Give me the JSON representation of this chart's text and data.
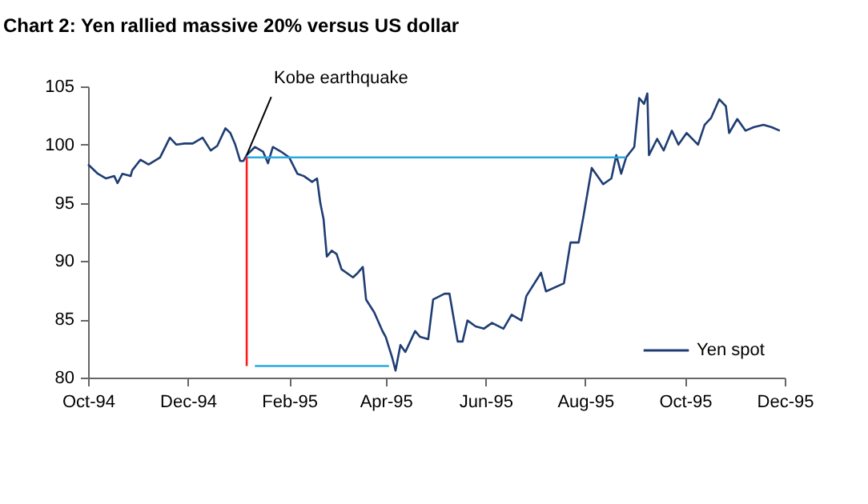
{
  "chart_data": {
    "type": "line",
    "title": "Chart 2: Yen rallied massive 20% versus US dollar",
    "ylim": [
      80,
      105
    ],
    "yticks": [
      80,
      85,
      90,
      95,
      100,
      105
    ],
    "xlim": [
      "1994-10-01",
      "1995-12-01"
    ],
    "xticks": [
      {
        "value": "1994-10-01",
        "label": "Oct-94"
      },
      {
        "value": "1994-12-01",
        "label": "Dec-94"
      },
      {
        "value": "1995-02-01",
        "label": "Feb-95"
      },
      {
        "value": "1995-04-01",
        "label": "Apr-95"
      },
      {
        "value": "1995-06-01",
        "label": "Jun-95"
      },
      {
        "value": "1995-08-01",
        "label": "Aug-95"
      },
      {
        "value": "1995-10-01",
        "label": "Oct-95"
      },
      {
        "value": "1995-12-01",
        "label": "Dec-95"
      }
    ],
    "grid": false,
    "legend": "bottom right",
    "annotations": [
      {
        "text": "Kobe earthquake",
        "x": "1995-01-06",
        "y": 99.1
      }
    ],
    "series": [
      {
        "name": "Yen spot",
        "color": "#1f3d73",
        "x": [
          "1994-10-01",
          "1994-10-07",
          "1994-10-12",
          "1994-10-17",
          "1994-10-19",
          "1994-10-22",
          "1994-10-27",
          "1994-10-28",
          "1994-11-02",
          "1994-11-07",
          "1994-11-14",
          "1994-11-20",
          "1994-11-24",
          "1994-11-29",
          "1994-12-04",
          "1994-12-10",
          "1994-12-15",
          "1994-12-19",
          "1994-12-24",
          "1994-12-27",
          "1994-12-30",
          "1995-01-02",
          "1995-01-04",
          "1995-01-06",
          "1995-01-11",
          "1995-01-16",
          "1995-01-19",
          "1995-01-22",
          "1995-01-27",
          "1995-02-01",
          "1995-02-06",
          "1995-02-10",
          "1995-02-15",
          "1995-02-18",
          "1995-02-20",
          "1995-02-22",
          "1995-02-24",
          "1995-02-27",
          "1995-03-02",
          "1995-03-05",
          "1995-03-12",
          "1995-03-15",
          "1995-03-18",
          "1995-03-20",
          "1995-03-25",
          "1995-03-30",
          "1995-04-01",
          "1995-04-05",
          "1995-04-07",
          "1995-04-10",
          "1995-04-13",
          "1995-04-19",
          "1995-04-22",
          "1995-04-27",
          "1995-04-30",
          "1995-05-07",
          "1995-05-10",
          "1995-05-15",
          "1995-05-18",
          "1995-05-21",
          "1995-05-26",
          "1995-05-31",
          "1995-06-05",
          "1995-06-12",
          "1995-06-17",
          "1995-06-23",
          "1995-06-26",
          "1995-07-05",
          "1995-07-08",
          "1995-07-19",
          "1995-07-23",
          "1995-07-28",
          "1995-07-31",
          "1995-08-05",
          "1995-08-12",
          "1995-08-17",
          "1995-08-20",
          "1995-08-23",
          "1995-08-26",
          "1995-08-31",
          "1995-09-03",
          "1995-09-06",
          "1995-09-08",
          "1995-09-09",
          "1995-09-14",
          "1995-09-18",
          "1995-09-23",
          "1995-09-27",
          "1995-10-02",
          "1995-10-09",
          "1995-10-13",
          "1995-10-17",
          "1995-10-22",
          "1995-10-26",
          "1995-10-28",
          "1995-11-02",
          "1995-11-07",
          "1995-11-12",
          "1995-11-18",
          "1995-11-23",
          "1995-11-28"
        ],
        "values": [
          98.3,
          97.5,
          97.1,
          97.3,
          96.7,
          97.5,
          97.3,
          97.8,
          98.7,
          98.3,
          98.9,
          100.6,
          100.0,
          100.1,
          100.1,
          100.6,
          99.5,
          99.9,
          101.4,
          101.0,
          100.0,
          98.6,
          98.6,
          99.1,
          99.8,
          99.4,
          98.4,
          99.8,
          99.4,
          98.9,
          97.5,
          97.3,
          96.8,
          97.1,
          95.0,
          93.6,
          90.4,
          90.9,
          90.6,
          89.3,
          88.6,
          89.0,
          89.5,
          86.7,
          85.6,
          84.0,
          83.5,
          81.7,
          80.6,
          82.8,
          82.2,
          84.0,
          83.5,
          83.3,
          86.7,
          87.2,
          87.2,
          83.1,
          83.1,
          84.9,
          84.4,
          84.2,
          84.7,
          84.2,
          85.4,
          84.9,
          87.0,
          89.0,
          87.4,
          88.1,
          91.6,
          91.6,
          93.9,
          98.0,
          96.6,
          97.1,
          99.1,
          97.5,
          98.9,
          99.8,
          104.0,
          103.5,
          104.4,
          99.1,
          100.5,
          99.5,
          101.2,
          100.0,
          101.0,
          100.0,
          101.7,
          102.3,
          103.9,
          103.3,
          101.0,
          102.2,
          101.2,
          101.5,
          101.7,
          101.5,
          101.2
        ]
      },
      {
        "color": "#29a9e1",
        "x": [
          "1995-01-06",
          "1995-08-26"
        ],
        "values": [
          98.9,
          98.9
        ]
      },
      {
        "color": "#29a9e1",
        "x": [
          "1995-01-11",
          "1995-04-03"
        ],
        "values": [
          81.0,
          81.0
        ]
      },
      {
        "color": "#ff1a1a",
        "x": [
          "1995-01-06",
          "1995-01-06"
        ],
        "values": [
          98.9,
          81.0
        ]
      }
    ]
  }
}
